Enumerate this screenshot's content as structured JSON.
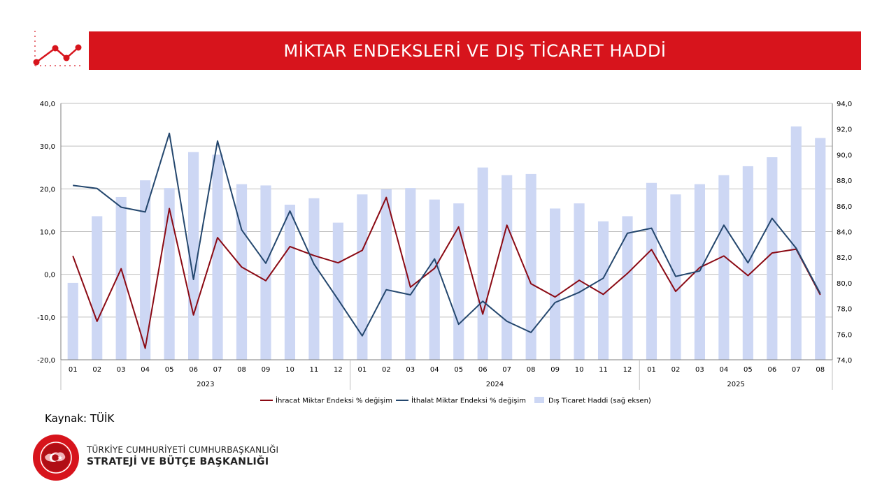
{
  "header": {
    "title": "MİKTAR ENDEKSLERİ VE DIŞ TİCARET HADDİ"
  },
  "colors": {
    "brand_red": "#d7141c",
    "export_line": "#8b0a14",
    "import_line": "#24476e",
    "bar_fill": "#cdd7f4"
  },
  "icons": {
    "header_icon": "line-chart-icon",
    "seal": "presidency-seal-icon"
  },
  "source": "Kaynak: TÜİK",
  "org": {
    "line1": "TÜRKİYE CUMHURİYETİ CUMHURBAŞKANLIĞI",
    "line2": "STRATEJİ VE BÜTÇE BAŞKANLIĞI"
  },
  "chart_data": {
    "type": "bar-line-combo",
    "title": "",
    "xlabel": "",
    "ylabel": "",
    "categories": [
      "01",
      "02",
      "03",
      "04",
      "05",
      "06",
      "07",
      "08",
      "09",
      "10",
      "11",
      "12",
      "01",
      "02",
      "03",
      "04",
      "05",
      "06",
      "07",
      "08",
      "09",
      "10",
      "11",
      "12",
      "01",
      "02",
      "03",
      "04",
      "05",
      "06",
      "07",
      "08"
    ],
    "year_groups": [
      {
        "label": "2023",
        "count": 12
      },
      {
        "label": "2024",
        "count": 12
      },
      {
        "label": "2025",
        "count": 8
      }
    ],
    "left_axis": {
      "ylim": [
        -20,
        40
      ],
      "ticks": [
        "-20,0",
        "-10,0",
        "0,0",
        "10,0",
        "20,0",
        "30,0",
        "40,0"
      ]
    },
    "right_axis": {
      "ylim": [
        74,
        94
      ],
      "ticks": [
        "74,0",
        "76,0",
        "78,0",
        "80,0",
        "82,0",
        "84,0",
        "86,0",
        "88,0",
        "90,0",
        "92,0",
        "94,0"
      ]
    },
    "grid": true,
    "legend_position": "bottom",
    "series": [
      {
        "name": "İhracat Miktar Endeksi % değişim",
        "type": "line",
        "axis": "left",
        "values": [
          4.3,
          -11.0,
          1.3,
          -17.3,
          15.4,
          -9.5,
          8.6,
          1.7,
          -1.5,
          6.5,
          4.4,
          2.7,
          5.6,
          18.0,
          -3.0,
          1.4,
          11.1,
          -9.3,
          11.5,
          -2.2,
          -5.3,
          -1.4,
          -4.7,
          0.2,
          5.8,
          -4.0,
          1.6,
          4.3,
          -0.3,
          5.0,
          5.9,
          -4.8
        ]
      },
      {
        "name": "İthalat Miktar Endeksi % değişim",
        "type": "line",
        "axis": "left",
        "values": [
          20.8,
          20.1,
          15.7,
          14.6,
          33.0,
          -1.2,
          31.2,
          10.4,
          2.6,
          14.8,
          2.4,
          -5.9,
          -14.4,
          -3.6,
          -4.8,
          3.6,
          -11.7,
          -6.3,
          -11.0,
          -13.6,
          -6.6,
          -4.2,
          -0.9,
          9.6,
          10.8,
          -0.5,
          0.8,
          11.5,
          2.7,
          13.1,
          6.1,
          -4.5
        ]
      },
      {
        "name": "Dış Ticaret Haddi (sağ eksen)",
        "type": "bar",
        "axis": "right",
        "values": [
          80.0,
          85.2,
          86.7,
          88.0,
          87.4,
          90.2,
          90.0,
          87.7,
          87.6,
          86.1,
          86.6,
          84.7,
          86.9,
          87.3,
          87.4,
          86.5,
          86.2,
          89.0,
          88.4,
          88.5,
          85.8,
          86.2,
          84.8,
          85.2,
          87.8,
          86.9,
          87.7,
          88.4,
          89.1,
          89.8,
          92.2,
          91.3
        ]
      }
    ]
  }
}
